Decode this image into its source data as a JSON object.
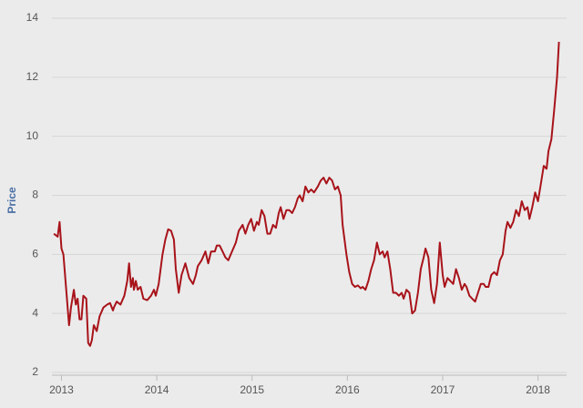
{
  "chart_data": {
    "type": "line",
    "y_label": "Price",
    "color": "#a8131a",
    "grid": true,
    "xlim": [
      2012.9,
      2018.3
    ],
    "xticks": [
      2013,
      2014,
      2015,
      2016,
      2017,
      2018
    ],
    "ylim": [
      2,
      14
    ],
    "yticks": [
      2,
      4,
      6,
      8,
      10,
      12,
      14
    ],
    "x": [
      2012.92,
      2012.96,
      2012.98,
      2013.0,
      2013.02,
      2013.05,
      2013.08,
      2013.1,
      2013.13,
      2013.15,
      2013.17,
      2013.19,
      2013.21,
      2013.23,
      2013.26,
      2013.28,
      2013.3,
      2013.32,
      2013.34,
      2013.37,
      2013.4,
      2013.44,
      2013.48,
      2013.51,
      2013.54,
      2013.55,
      2013.58,
      2013.62,
      2013.66,
      2013.69,
      2013.71,
      2013.73,
      2013.75,
      2013.76,
      2013.78,
      2013.8,
      2013.83,
      2013.86,
      2013.9,
      2013.94,
      2013.97,
      2013.99,
      2014.02,
      2014.06,
      2014.09,
      2014.12,
      2014.15,
      2014.18,
      2014.2,
      2014.23,
      2014.26,
      2014.3,
      2014.34,
      2014.38,
      2014.41,
      2014.43,
      2014.47,
      2014.51,
      2014.54,
      2014.57,
      2014.61,
      2014.63,
      2014.66,
      2014.69,
      2014.72,
      2014.75,
      2014.79,
      2014.83,
      2014.86,
      2014.9,
      2014.93,
      2014.96,
      2014.99,
      2015.02,
      2015.05,
      2015.07,
      2015.1,
      2015.13,
      2015.16,
      2015.19,
      2015.22,
      2015.25,
      2015.28,
      2015.3,
      2015.33,
      2015.36,
      2015.39,
      2015.42,
      2015.45,
      2015.48,
      2015.5,
      2015.53,
      2015.56,
      2015.59,
      2015.62,
      2015.65,
      2015.69,
      2015.72,
      2015.75,
      2015.78,
      2015.81,
      2015.84,
      2015.87,
      2015.9,
      2015.93,
      2015.95,
      2015.99,
      2016.02,
      2016.05,
      2016.08,
      2016.11,
      2016.14,
      2016.16,
      2016.19,
      2016.22,
      2016.25,
      2016.28,
      2016.31,
      2016.34,
      2016.37,
      2016.39,
      2016.42,
      2016.45,
      2016.48,
      2016.51,
      2016.54,
      2016.57,
      2016.59,
      2016.62,
      2016.65,
      2016.68,
      2016.71,
      2016.74,
      2016.77,
      2016.8,
      2016.82,
      2016.85,
      2016.88,
      2016.91,
      2016.94,
      2016.97,
      2017.0,
      2017.02,
      2017.05,
      2017.08,
      2017.11,
      2017.14,
      2017.17,
      2017.2,
      2017.23,
      2017.25,
      2017.28,
      2017.31,
      2017.34,
      2017.37,
      2017.4,
      2017.43,
      2017.45,
      2017.48,
      2017.51,
      2017.54,
      2017.57,
      2017.6,
      2017.63,
      2017.66,
      2017.68,
      2017.71,
      2017.74,
      2017.77,
      2017.8,
      2017.83,
      2017.86,
      2017.89,
      2017.91,
      2017.94,
      2017.97,
      2018.0,
      2018.03,
      2018.06,
      2018.09,
      2018.11,
      2018.14,
      2018.17,
      2018.2,
      2018.22
    ],
    "values": [
      6.7,
      6.6,
      7.1,
      6.2,
      6.0,
      4.8,
      3.6,
      4.2,
      4.8,
      4.3,
      4.5,
      3.8,
      3.8,
      4.6,
      4.5,
      3.0,
      2.9,
      3.1,
      3.6,
      3.4,
      3.9,
      4.2,
      4.3,
      4.35,
      4.1,
      4.2,
      4.4,
      4.3,
      4.6,
      5.1,
      5.7,
      4.9,
      5.2,
      4.8,
      5.1,
      4.8,
      4.9,
      4.5,
      4.45,
      4.6,
      4.8,
      4.6,
      5.0,
      6.0,
      6.5,
      6.85,
      6.8,
      6.5,
      5.5,
      4.7,
      5.3,
      5.7,
      5.2,
      5.0,
      5.3,
      5.6,
      5.8,
      6.1,
      5.7,
      6.1,
      6.1,
      6.3,
      6.3,
      6.1,
      5.9,
      5.8,
      6.1,
      6.4,
      6.8,
      7.0,
      6.7,
      7.0,
      7.2,
      6.8,
      7.1,
      7.0,
      7.5,
      7.3,
      6.7,
      6.7,
      7.0,
      6.9,
      7.4,
      7.6,
      7.2,
      7.5,
      7.5,
      7.4,
      7.6,
      7.9,
      8.0,
      7.8,
      8.3,
      8.1,
      8.2,
      8.1,
      8.3,
      8.5,
      8.6,
      8.4,
      8.6,
      8.5,
      8.2,
      8.3,
      8.0,
      7.0,
      6.0,
      5.4,
      5.0,
      4.9,
      4.95,
      4.85,
      4.9,
      4.8,
      5.1,
      5.5,
      5.8,
      6.4,
      6.0,
      6.1,
      5.9,
      6.1,
      5.5,
      4.7,
      4.7,
      4.6,
      4.7,
      4.5,
      4.8,
      4.7,
      4.0,
      4.1,
      4.7,
      5.5,
      5.9,
      6.2,
      5.9,
      4.8,
      4.35,
      5.0,
      6.4,
      5.3,
      4.9,
      5.2,
      5.1,
      5.0,
      5.5,
      5.2,
      4.8,
      5.0,
      4.9,
      4.6,
      4.5,
      4.4,
      4.7,
      5.0,
      5.0,
      4.9,
      4.9,
      5.3,
      5.4,
      5.3,
      5.8,
      6.0,
      6.8,
      7.1,
      6.9,
      7.1,
      7.5,
      7.3,
      7.8,
      7.5,
      7.6,
      7.2,
      7.6,
      8.1,
      7.8,
      8.4,
      9.0,
      8.9,
      9.5,
      9.9,
      10.9,
      12.0,
      13.2
    ]
  }
}
